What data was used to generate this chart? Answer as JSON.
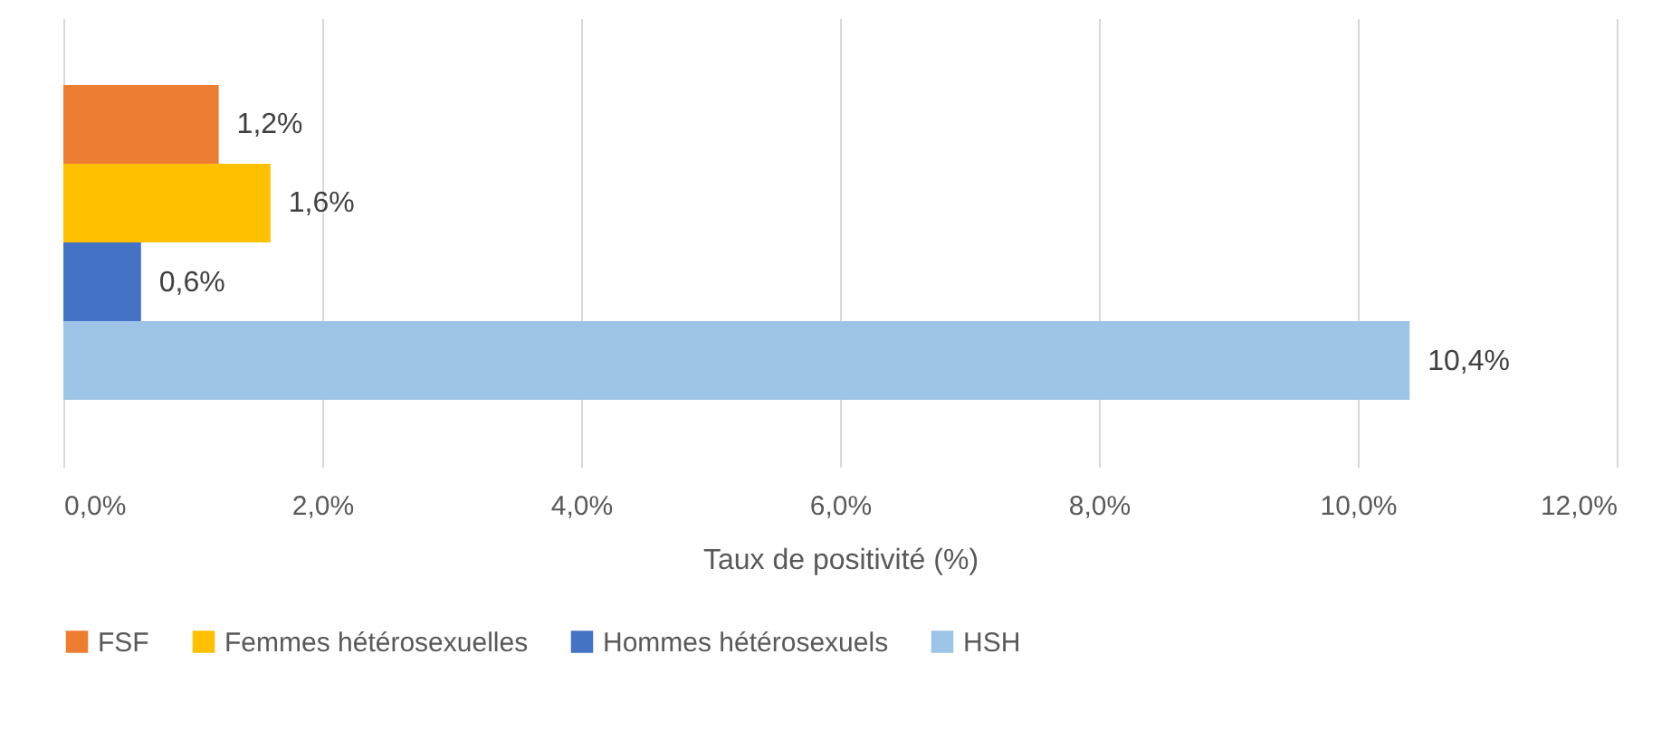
{
  "chart_data": {
    "type": "bar",
    "orientation": "horizontal",
    "categories": [
      null
    ],
    "series": [
      {
        "name": "FSF",
        "color": "#ed7d31",
        "values": [
          1.2
        ],
        "value_labels": [
          "1,2%"
        ]
      },
      {
        "name": "Femmes hétérosexuelles",
        "color": "#ffc000",
        "values": [
          1.6
        ],
        "value_labels": [
          "1,6%"
        ]
      },
      {
        "name": "Hommes hétérosexuels",
        "color": "#4472c4",
        "values": [
          0.6
        ],
        "value_labels": [
          "0,6%"
        ]
      },
      {
        "name": "HSH",
        "color": "#9dc3e6",
        "values": [
          10.4
        ],
        "value_labels": [
          "10,4%"
        ]
      }
    ],
    "xlim": [
      0,
      12
    ],
    "xticks": [
      {
        "value": 0,
        "label": "0,0%"
      },
      {
        "value": 2,
        "label": "2,0%"
      },
      {
        "value": 4,
        "label": "4,0%"
      },
      {
        "value": 6,
        "label": "6,0%"
      },
      {
        "value": 8,
        "label": "8,0%"
      },
      {
        "value": 10,
        "label": "10,0%"
      },
      {
        "value": 12,
        "label": "12,0%"
      }
    ],
    "xlabel": "Taux de positivité (%)",
    "grid": "x",
    "legend": "bottom"
  }
}
